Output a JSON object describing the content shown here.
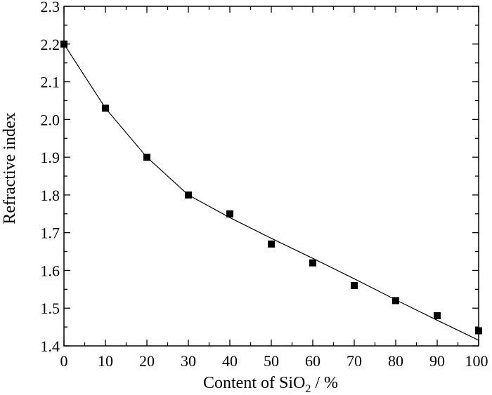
{
  "chart_data": {
    "type": "scatter",
    "title": "",
    "xlabel_prefix": "Content of SiO",
    "xlabel_subscript": "2",
    "xlabel_suffix": " / %",
    "ylabel": "Refractive index",
    "xlim": [
      0,
      100
    ],
    "ylim": [
      1.4,
      2.3
    ],
    "x_ticks": [
      0,
      10,
      20,
      30,
      40,
      50,
      60,
      70,
      80,
      90,
      100
    ],
    "y_ticks": [
      1.4,
      1.5,
      1.6,
      1.7,
      1.8,
      1.9,
      2.0,
      2.1,
      2.2,
      2.3
    ],
    "x_tick_labels": [
      "0",
      "10",
      "20",
      "30",
      "40",
      "50",
      "60",
      "70",
      "80",
      "90",
      "100"
    ],
    "y_tick_labels": [
      "1.4",
      "1.5",
      "1.6",
      "1.7",
      "1.8",
      "1.9",
      "2.0",
      "2.1",
      "2.2",
      "2.3"
    ],
    "grid": false,
    "legend": "none",
    "series": [
      {
        "kind": "markers",
        "marker": "square",
        "x": [
          0,
          10,
          20,
          30,
          40,
          50,
          60,
          70,
          80,
          90,
          100
        ],
        "y": [
          2.2,
          2.03,
          1.9,
          1.8,
          1.75,
          1.67,
          1.62,
          1.56,
          1.52,
          1.48,
          1.44
        ]
      },
      {
        "kind": "fitted-line",
        "x": [
          0,
          10,
          20,
          30,
          40,
          50,
          60,
          70,
          80,
          90,
          100
        ],
        "y": [
          2.2,
          2.03,
          1.9,
          1.8,
          1.74,
          1.685,
          1.632,
          1.578,
          1.522,
          1.468,
          1.415
        ]
      }
    ]
  }
}
